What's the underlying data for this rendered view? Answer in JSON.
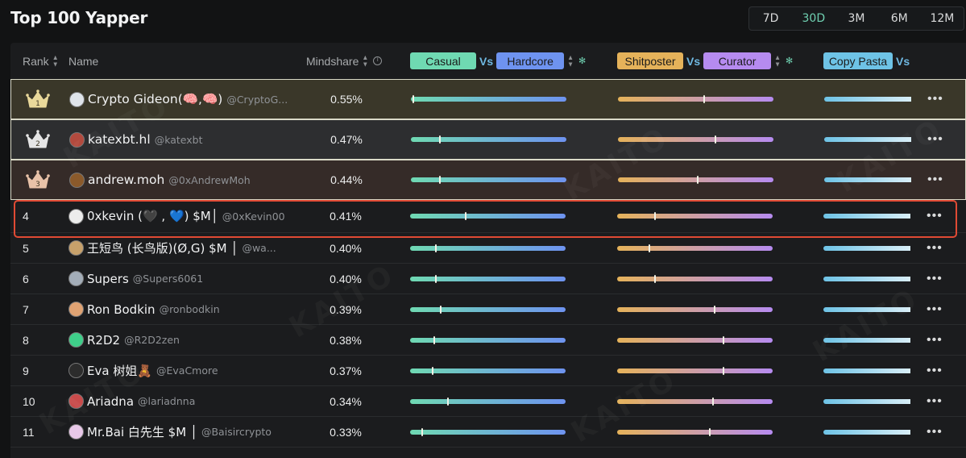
{
  "page": {
    "title": "Top 100 Yapper"
  },
  "range_tabs": [
    {
      "label": "7D",
      "active": false
    },
    {
      "label": "30D",
      "active": true
    },
    {
      "label": "3M",
      "active": false
    },
    {
      "label": "6M",
      "active": false
    },
    {
      "label": "12M",
      "active": false
    }
  ],
  "table": {
    "headers": {
      "rank": "Rank",
      "name": "Name",
      "mindshare": "Mindshare",
      "vs": "Vs",
      "casual": "Casual",
      "hardcore": "Hardcore",
      "shitposter": "Shitposter",
      "curator": "Curator",
      "copy_pasta": "Copy Pasta"
    },
    "pill_colors": {
      "casual": "#6fd9b2",
      "hardcore": "#6e93f0",
      "shitposter": "#e5b25a",
      "curator": "#b68bf0",
      "copy_pasta": "#6ec3e6"
    },
    "watermark": "KAITO",
    "rows": [
      {
        "rank": "1",
        "name": "Crypto Gideon(🧠,🧠)",
        "handle": "@CryptoG...",
        "mindshare": "0.55%",
        "casual_hardcore": 0.01,
        "shit_curator": 0.55,
        "copy": 1.0,
        "avatar_color": "#dfe4ea"
      },
      {
        "rank": "2",
        "name": "katexbt.hl",
        "handle": "@katexbt",
        "mindshare": "0.47%",
        "casual_hardcore": 0.18,
        "shit_curator": 0.62,
        "copy": 1.0,
        "avatar_color": "#b34a3e"
      },
      {
        "rank": "3",
        "name": "andrew.moh",
        "handle": "@0xAndrewMoh",
        "mindshare": "0.44%",
        "casual_hardcore": 0.18,
        "shit_curator": 0.51,
        "copy": 1.0,
        "avatar_color": "#8b5a2b"
      },
      {
        "rank": "4",
        "name": "0xkevin (🖤 , 💙) $M│",
        "handle": "@0xKevin00",
        "mindshare": "0.41%",
        "casual_hardcore": 0.35,
        "shit_curator": 0.24,
        "copy": 1.0,
        "avatar_color": "#ececec"
      },
      {
        "rank": "5",
        "name": "王短鸟 (长鸟版)(Ø,G) $M │",
        "handle": "@wa...",
        "mindshare": "0.40%",
        "casual_hardcore": 0.16,
        "shit_curator": 0.2,
        "copy": 1.0,
        "avatar_color": "#c7a16b"
      },
      {
        "rank": "6",
        "name": "Supers",
        "handle": "@Supers6061",
        "mindshare": "0.40%",
        "casual_hardcore": 0.16,
        "shit_curator": 0.24,
        "copy": 1.0,
        "avatar_color": "#a3adb8"
      },
      {
        "rank": "7",
        "name": "Ron Bodkin",
        "handle": "@ronbodkin",
        "mindshare": "0.39%",
        "casual_hardcore": 0.19,
        "shit_curator": 0.62,
        "copy": 1.0,
        "avatar_color": "#e0a373"
      },
      {
        "rank": "8",
        "name": "R2D2",
        "handle": "@R2D2zen",
        "mindshare": "0.38%",
        "casual_hardcore": 0.15,
        "shit_curator": 0.68,
        "copy": 1.0,
        "avatar_color": "#3fcf8a"
      },
      {
        "rank": "9",
        "name": "Eva 树姐🧸",
        "handle": "@EvaCmore",
        "mindshare": "0.37%",
        "casual_hardcore": 0.14,
        "shit_curator": 0.68,
        "copy": 1.0,
        "avatar_color": "#2c2c2c"
      },
      {
        "rank": "10",
        "name": "Ariadna",
        "handle": "@lariadnna",
        "mindshare": "0.34%",
        "casual_hardcore": 0.24,
        "shit_curator": 0.61,
        "copy": 1.0,
        "avatar_color": "#c94b4b"
      },
      {
        "rank": "11",
        "name": "Mr.Bai 白先生 $M │",
        "handle": "@Baisircrypto",
        "mindshare": "0.33%",
        "casual_hardcore": 0.07,
        "shit_curator": 0.59,
        "copy": 1.0,
        "avatar_color": "#e8c8e8"
      }
    ]
  }
}
